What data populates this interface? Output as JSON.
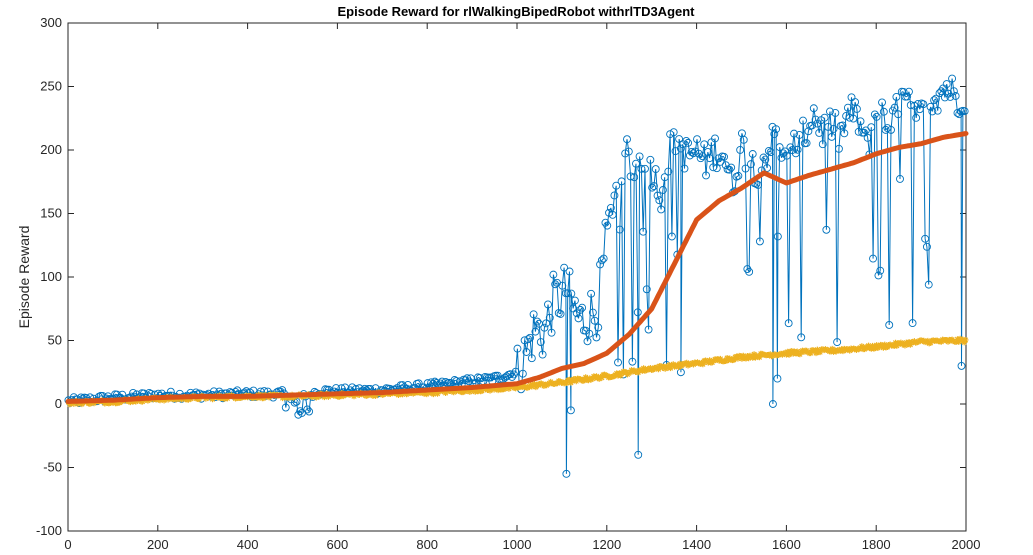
{
  "chart_data": {
    "type": "line",
    "title": "Episode Reward for rlWalkingBipedRobot withrlTD3Agent",
    "xlabel": "",
    "ylabel": "Episode Reward",
    "xlim": [
      0,
      2000
    ],
    "ylim": [
      -100,
      300
    ],
    "xticks": [
      0,
      200,
      400,
      600,
      800,
      1000,
      1200,
      1400,
      1600,
      1800,
      2000
    ],
    "yticks": [
      -100,
      -50,
      0,
      50,
      100,
      150,
      200,
      250,
      300
    ],
    "grid": false,
    "legend": "none",
    "series": [
      {
        "kind": "episode-reward",
        "color": "#0072BD",
        "marker": "circle",
        "stems": true,
        "x": [
          0,
          100,
          200,
          300,
          400,
          450,
          480,
          500,
          520,
          540,
          560,
          600,
          700,
          800,
          850,
          900,
          950,
          1000,
          1020,
          1040,
          1060,
          1080,
          1100,
          1110,
          1120,
          1140,
          1160,
          1180,
          1200,
          1220,
          1230,
          1240,
          1260,
          1280,
          1300,
          1320,
          1340,
          1360,
          1380,
          1400,
          1420,
          1440,
          1460,
          1480,
          1500,
          1520,
          1540,
          1560,
          1580,
          1600,
          1620,
          1640,
          1660,
          1680,
          1700,
          1720,
          1740,
          1760,
          1780,
          1800,
          1820,
          1840,
          1860,
          1880,
          1900,
          1920,
          1940,
          1960,
          1980,
          2000
        ],
        "y": [
          2,
          5,
          7,
          7,
          8,
          8,
          8,
          3,
          4,
          8,
          10,
          10,
          11,
          14,
          16,
          18,
          20,
          25,
          40,
          60,
          55,
          80,
          85,
          92,
          80,
          65,
          70,
          75,
          130,
          175,
          145,
          200,
          180,
          200,
          185,
          165,
          200,
          205,
          195,
          200,
          190,
          200,
          198,
          170,
          205,
          190,
          185,
          200,
          215,
          185,
          205,
          210,
          230,
          215,
          220,
          210,
          230,
          225,
          200,
          235,
          220,
          225,
          240,
          230,
          225,
          240,
          245,
          250,
          240,
          245
        ],
        "notable_points": [
          {
            "x": 1110,
            "y": -55
          },
          {
            "x": 1120,
            "y": -5
          },
          {
            "x": 1270,
            "y": -40
          },
          {
            "x": 1365,
            "y": 25
          },
          {
            "x": 1570,
            "y": 0
          },
          {
            "x": 1580,
            "y": 20
          },
          {
            "x": 1990,
            "y": 30
          }
        ]
      },
      {
        "kind": "average-reward",
        "color": "#D95319",
        "x": [
          0,
          100,
          200,
          300,
          400,
          500,
          600,
          700,
          800,
          900,
          1000,
          1050,
          1100,
          1150,
          1200,
          1250,
          1300,
          1350,
          1400,
          1450,
          1500,
          1550,
          1600,
          1650,
          1700,
          1750,
          1800,
          1850,
          1900,
          1950,
          2000
        ],
        "y": [
          2,
          3,
          5,
          6,
          6,
          7,
          8,
          9,
          11,
          13,
          16,
          21,
          28,
          32,
          40,
          55,
          75,
          110,
          145,
          160,
          170,
          182,
          174,
          180,
          185,
          190,
          197,
          202,
          205,
          210,
          213
        ]
      },
      {
        "kind": "episode-q0",
        "color": "#EDB120",
        "marker": "asterisk",
        "x": [
          0,
          100,
          200,
          300,
          400,
          500,
          600,
          700,
          800,
          900,
          1000,
          1100,
          1200,
          1300,
          1400,
          1500,
          1600,
          1700,
          1800,
          1900,
          2000
        ],
        "y": [
          1,
          2,
          4,
          5,
          6,
          6,
          7,
          8,
          9,
          11,
          13,
          17,
          22,
          28,
          32,
          37,
          40,
          42,
          45,
          49,
          50
        ]
      }
    ]
  }
}
